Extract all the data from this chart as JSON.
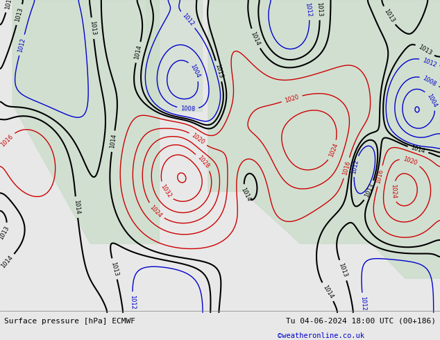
{
  "title_left": "Surface pressure [hPa] ECMWF",
  "title_right": "Tu 04-06-2024 18:00 UTC (00+186)",
  "watermark": "©weatheronline.co.uk",
  "watermark_color": "#0000cc",
  "bg_color": "#e8e8e8",
  "map_bg_color": "#d8d8d8",
  "land_color": "#c8dcc8",
  "sea_color": "#c8d8e8",
  "contour_low_color": "#0000cc",
  "contour_high_color": "#cc0000",
  "contour_black_color": "#000000",
  "label_fontsize": 7,
  "title_fontsize": 8,
  "figsize": [
    6.34,
    4.9
  ],
  "dpi": 100
}
